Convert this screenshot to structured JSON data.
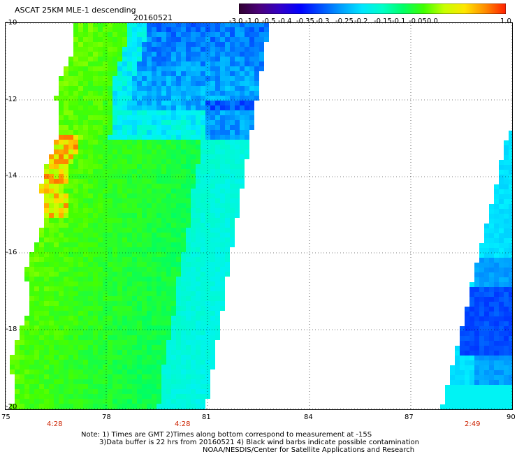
{
  "header": {
    "title": "ASCAT 25KM MLE-1 descending",
    "date": "20160521"
  },
  "colorbar": {
    "labels": [
      "-3.0",
      "-1.0",
      "-0.5",
      "-0.4",
      "-0.35",
      "-0.3",
      "-0.25",
      "-0.2",
      "-0.15",
      "-0.1",
      "-0.05",
      "0.0",
      "1.0"
    ],
    "colors": [
      "#300030",
      "#4a007a",
      "#3200c8",
      "#0000ff",
      "#0050ff",
      "#00a0ff",
      "#00e6ff",
      "#00ffc8",
      "#00ff66",
      "#40ff00",
      "#c8ff00",
      "#ffe600",
      "#ff8c00",
      "#ff1e00"
    ]
  },
  "axes": {
    "y_ticks": [
      "-10",
      "-12",
      "-14",
      "-16",
      "-18",
      "-20"
    ],
    "x_ticks": [
      "75",
      "78",
      "81",
      "84",
      "87",
      "90"
    ],
    "time_labels": [
      "4:28",
      "4:28",
      "2:49"
    ]
  },
  "notes": {
    "line1": "Note: 1) Times are GMT 2)Times along bottom correspond to measurement at -15S",
    "line2": "3)Data buffer is 22 hrs from 20160521 4) Black wind barbs indicate possible contamination",
    "line3": "NOAA/NESDIS/Center for Satellite Applications and Research"
  }
}
